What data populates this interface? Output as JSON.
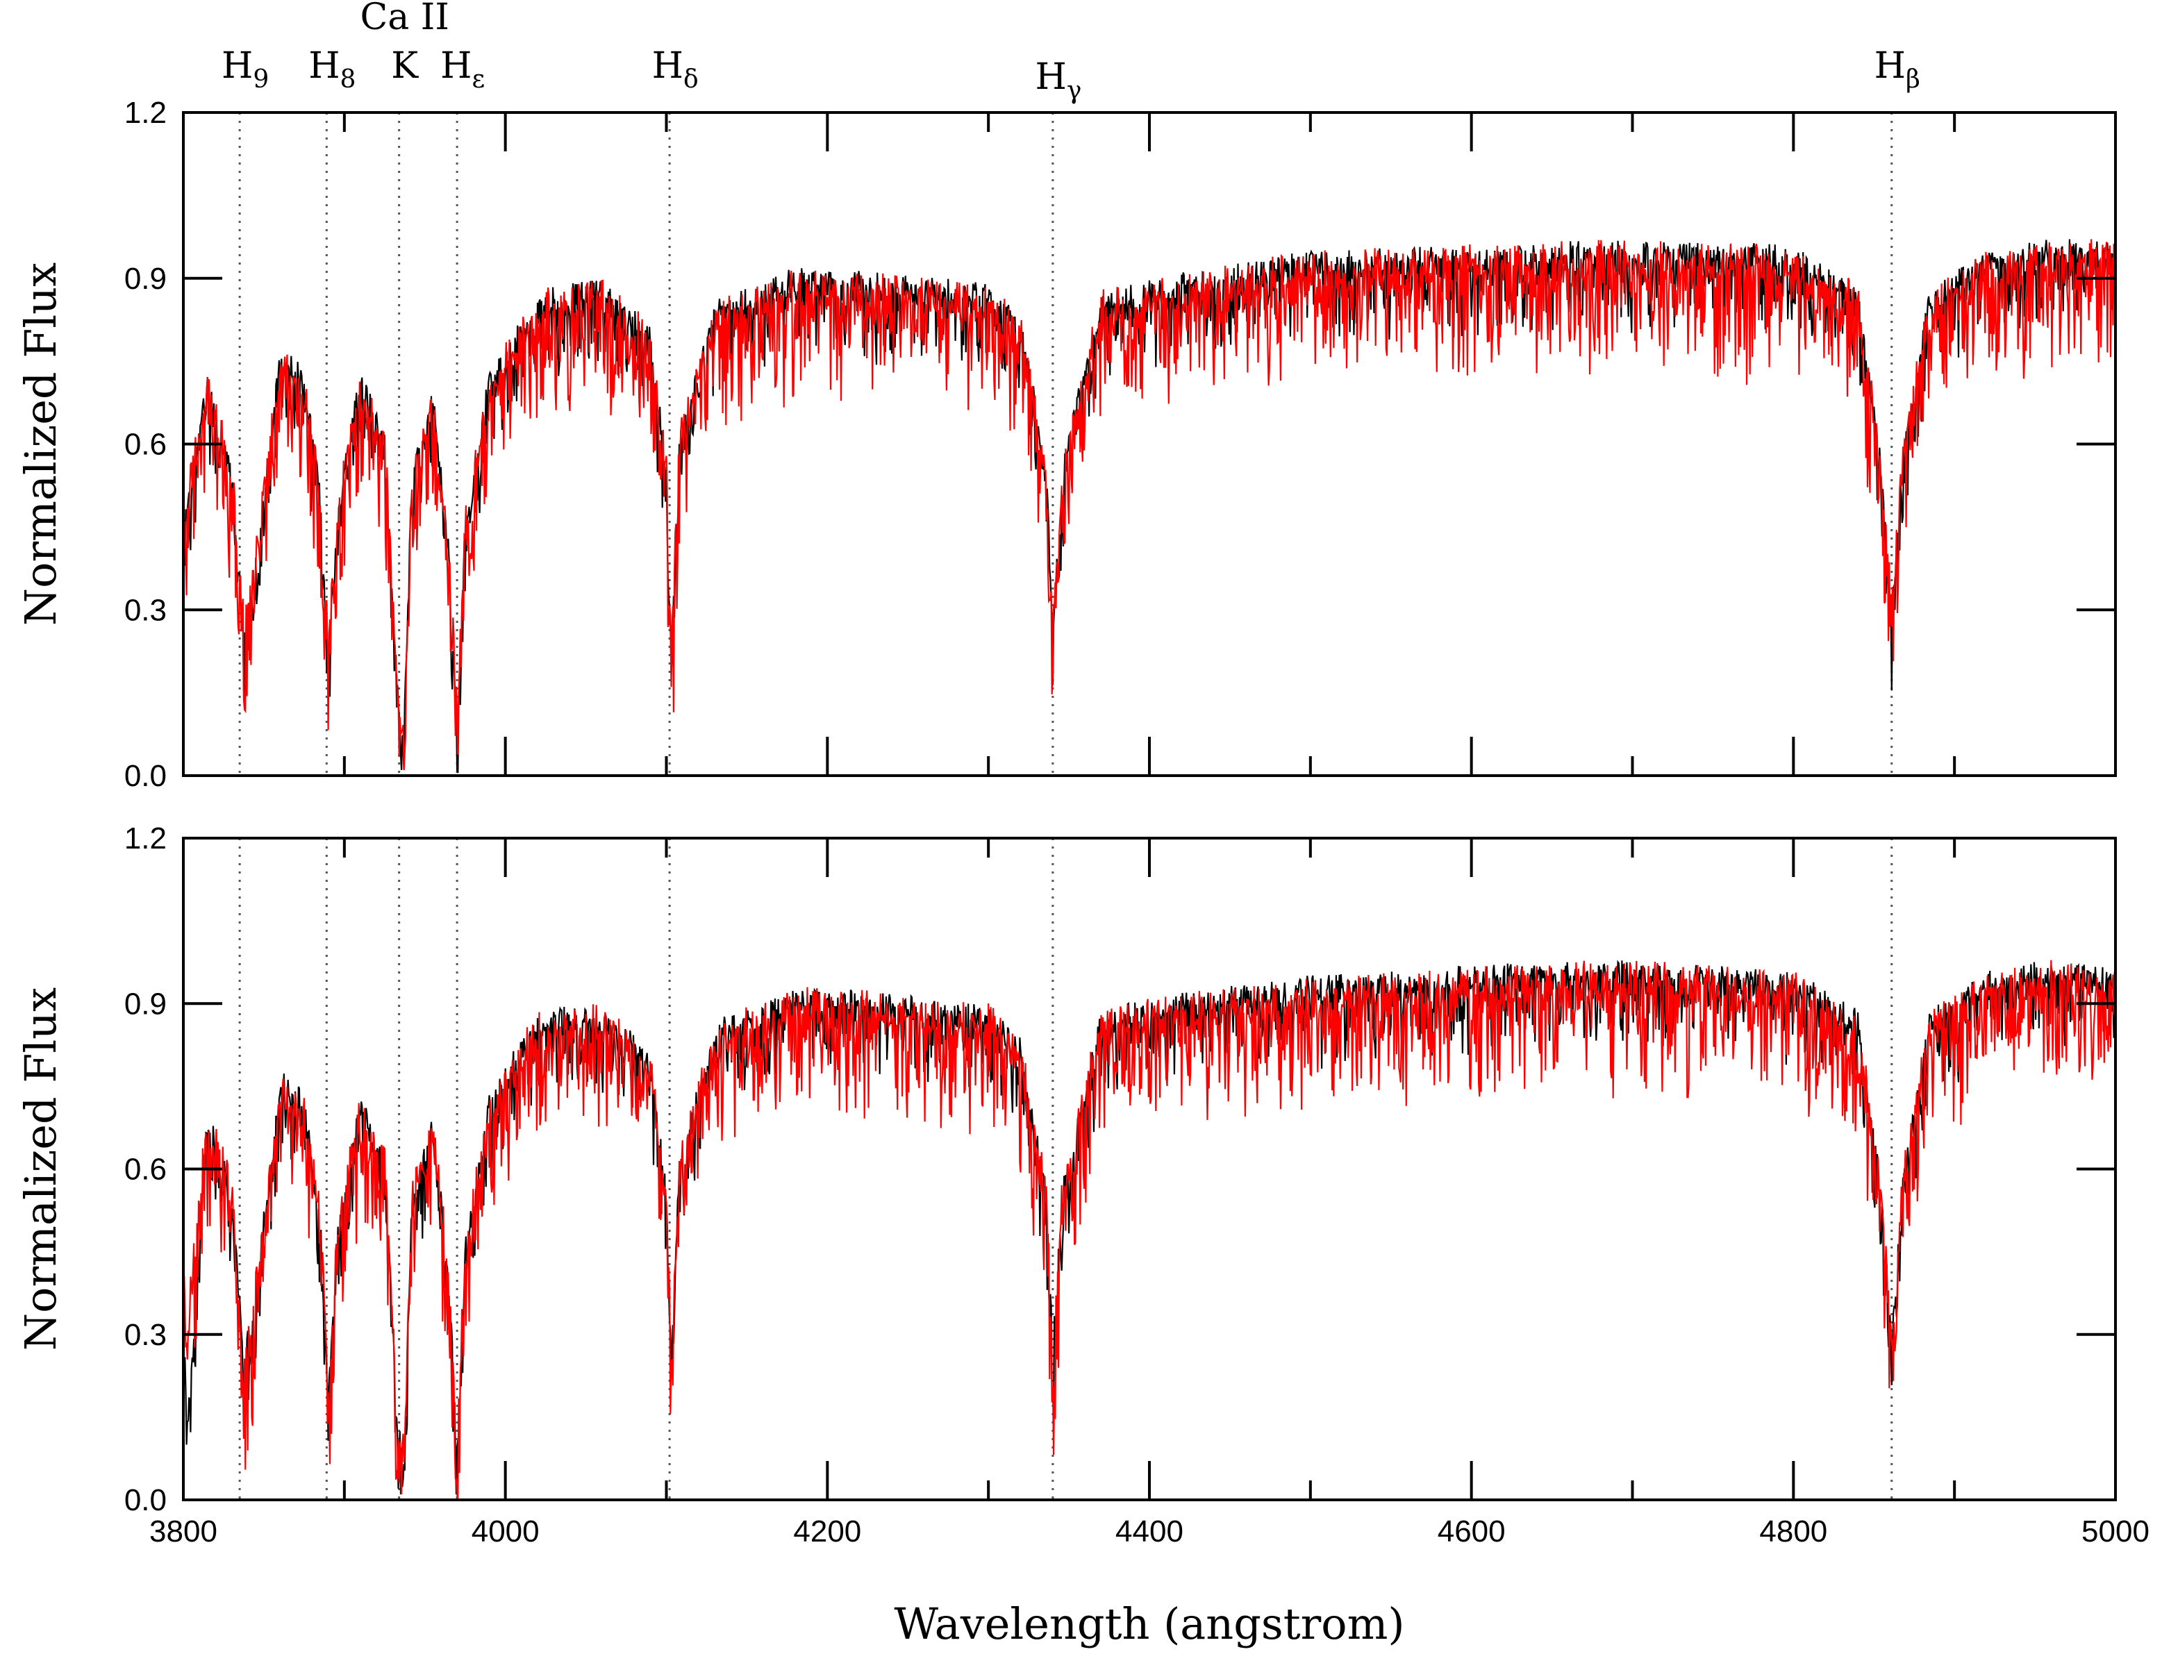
{
  "chart_data": [
    {
      "type": "line",
      "panel": "top",
      "xlabel": "",
      "ylabel": "Normalized Flux",
      "xlim": [
        3800,
        5000
      ],
      "ylim": [
        0.0,
        1.2
      ],
      "x_ticks": [
        3800,
        4000,
        4200,
        4400,
        4600,
        4800,
        5000
      ],
      "y_ticks": [
        "0.0",
        "0.3",
        "0.6",
        "0.9",
        "1.2"
      ],
      "show_x_tick_labels": false,
      "grid": false,
      "series": [
        {
          "color": "#000000",
          "role": "observed",
          "x": [
            3800,
            3815,
            3830,
            3838,
            3846,
            3860,
            3875,
            3885,
            3890,
            3896,
            3910,
            3925,
            3933,
            3937,
            3942,
            3955,
            3965,
            3970,
            3975,
            3990,
            4020,
            4060,
            4090,
            4100,
            4103,
            4108,
            4130,
            4180,
            4240,
            4300,
            4320,
            4336,
            4340,
            4346,
            4370,
            4420,
            4500,
            4600,
            4700,
            4800,
            4840,
            4855,
            4861,
            4868,
            4885,
            4920,
            4960,
            5000
          ],
          "y": [
            0.45,
            0.72,
            0.55,
            0.24,
            0.4,
            0.76,
            0.72,
            0.5,
            0.21,
            0.48,
            0.72,
            0.6,
            0.15,
            0.07,
            0.55,
            0.68,
            0.4,
            0.09,
            0.45,
            0.72,
            0.86,
            0.88,
            0.8,
            0.55,
            0.2,
            0.6,
            0.84,
            0.9,
            0.89,
            0.87,
            0.82,
            0.55,
            0.27,
            0.56,
            0.86,
            0.89,
            0.93,
            0.94,
            0.95,
            0.94,
            0.87,
            0.55,
            0.28,
            0.58,
            0.87,
            0.93,
            0.95,
            0.95
          ]
        },
        {
          "color": "#ff0000",
          "role": "model",
          "x": [
            3800,
            3815,
            3830,
            3838,
            3846,
            3860,
            3875,
            3885,
            3890,
            3896,
            3910,
            3925,
            3933,
            3937,
            3942,
            3955,
            3965,
            3970,
            3975,
            3990,
            4020,
            4060,
            4090,
            4100,
            4103,
            4108,
            4130,
            4180,
            4240,
            4300,
            4320,
            4336,
            4340,
            4346,
            4370,
            4420,
            4500,
            4600,
            4700,
            4800,
            4840,
            4855,
            4861,
            4868,
            4885,
            4920,
            4960,
            5000
          ],
          "y": [
            0.47,
            0.7,
            0.56,
            0.27,
            0.42,
            0.75,
            0.71,
            0.52,
            0.23,
            0.5,
            0.7,
            0.61,
            0.17,
            0.08,
            0.57,
            0.67,
            0.42,
            0.1,
            0.46,
            0.71,
            0.85,
            0.87,
            0.79,
            0.56,
            0.22,
            0.61,
            0.83,
            0.89,
            0.88,
            0.86,
            0.81,
            0.56,
            0.28,
            0.57,
            0.85,
            0.88,
            0.92,
            0.93,
            0.94,
            0.93,
            0.86,
            0.56,
            0.3,
            0.59,
            0.86,
            0.92,
            0.94,
            0.94
          ]
        }
      ]
    },
    {
      "type": "line",
      "panel": "bottom",
      "xlabel": "Wavelength (angstrom)",
      "ylabel": "Normalized Flux",
      "xlim": [
        3800,
        5000
      ],
      "ylim": [
        0.0,
        1.2
      ],
      "x_ticks": [
        "3800",
        "4000",
        "4200",
        "4400",
        "4600",
        "4800",
        "5000"
      ],
      "y_ticks": [
        "0.0",
        "0.3",
        "0.6",
        "0.9",
        "1.2"
      ],
      "show_x_tick_labels": true,
      "grid": false,
      "series": [
        {
          "color": "#000000",
          "role": "observed",
          "x": [
            3800,
            3802,
            3815,
            3830,
            3838,
            3846,
            3860,
            3875,
            3885,
            3890,
            3896,
            3910,
            3925,
            3933,
            3937,
            3942,
            3955,
            3965,
            3970,
            3975,
            3990,
            4020,
            4060,
            4090,
            4100,
            4103,
            4108,
            4130,
            4180,
            4240,
            4300,
            4320,
            4336,
            4340,
            4346,
            4370,
            4420,
            4500,
            4600,
            4700,
            4800,
            4840,
            4855,
            4861,
            4868,
            4885,
            4920,
            4960,
            5000
          ],
          "y": [
            0.4,
            0.12,
            0.7,
            0.55,
            0.25,
            0.4,
            0.76,
            0.72,
            0.5,
            0.19,
            0.48,
            0.72,
            0.6,
            0.15,
            0.07,
            0.55,
            0.68,
            0.4,
            0.09,
            0.45,
            0.72,
            0.87,
            0.88,
            0.8,
            0.55,
            0.24,
            0.6,
            0.85,
            0.91,
            0.9,
            0.88,
            0.82,
            0.55,
            0.27,
            0.56,
            0.87,
            0.9,
            0.93,
            0.95,
            0.96,
            0.94,
            0.87,
            0.55,
            0.28,
            0.58,
            0.87,
            0.94,
            0.96,
            0.95
          ]
        },
        {
          "color": "#ff0000",
          "role": "model",
          "x": [
            3800,
            3802,
            3815,
            3830,
            3838,
            3846,
            3860,
            3875,
            3885,
            3890,
            3896,
            3910,
            3925,
            3933,
            3937,
            3942,
            3955,
            3965,
            3970,
            3975,
            3990,
            4020,
            4060,
            4090,
            4100,
            4103,
            4108,
            4130,
            4180,
            4240,
            4300,
            4320,
            4336,
            4340,
            4346,
            4370,
            4420,
            4500,
            4600,
            4700,
            4800,
            4840,
            4855,
            4861,
            4868,
            4885,
            4920,
            4960,
            5000
          ],
          "y": [
            0.45,
            0.3,
            0.71,
            0.56,
            0.23,
            0.42,
            0.75,
            0.71,
            0.52,
            0.21,
            0.5,
            0.71,
            0.61,
            0.17,
            0.08,
            0.57,
            0.67,
            0.42,
            0.1,
            0.46,
            0.71,
            0.86,
            0.87,
            0.79,
            0.56,
            0.25,
            0.61,
            0.84,
            0.9,
            0.89,
            0.87,
            0.81,
            0.56,
            0.27,
            0.57,
            0.86,
            0.89,
            0.92,
            0.94,
            0.95,
            0.93,
            0.86,
            0.56,
            0.29,
            0.59,
            0.86,
            0.93,
            0.95,
            0.94
          ]
        }
      ]
    }
  ],
  "line_markers": [
    {
      "main": "H",
      "sub": "9",
      "x": 3835
    },
    {
      "main": "H",
      "sub": "8",
      "x": 3889
    },
    {
      "main": "K",
      "sub": "",
      "x": 3934,
      "pre": "Ca II"
    },
    {
      "main": "H",
      "sub": "ε",
      "x": 3970
    },
    {
      "main": "H",
      "sub": "δ",
      "x": 4102
    },
    {
      "main": "H",
      "sub": "γ",
      "x": 4340
    },
    {
      "main": "H",
      "sub": "β",
      "x": 4861
    }
  ],
  "colors": {
    "observed": "#000000",
    "model": "#ff0000",
    "markers": "#555555"
  }
}
